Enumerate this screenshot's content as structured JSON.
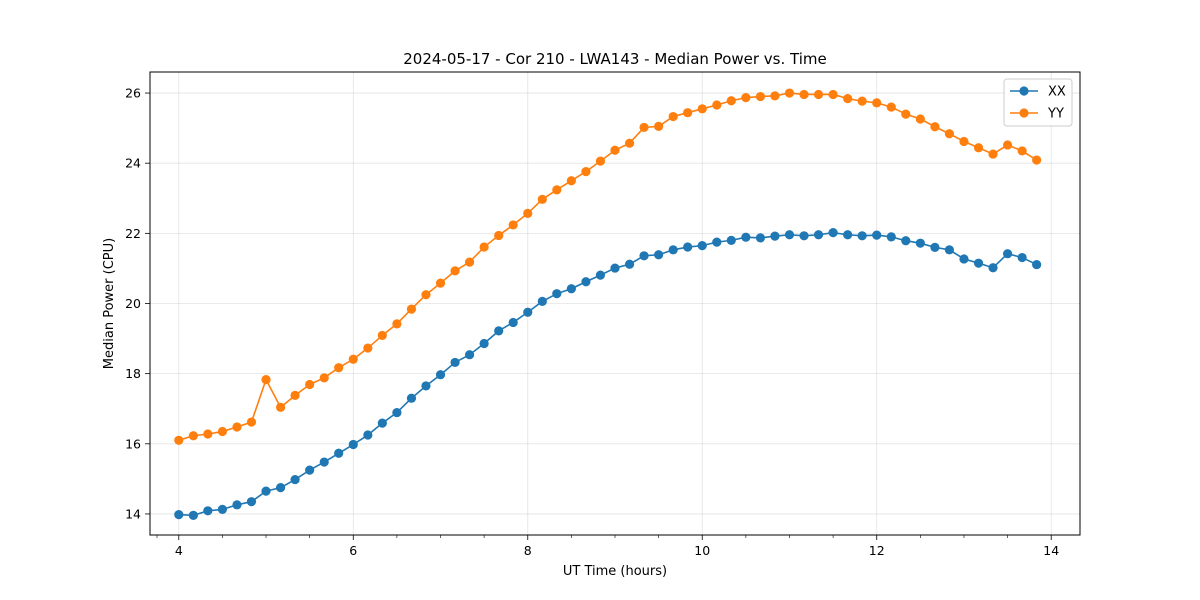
{
  "chart_data": {
    "type": "line",
    "title": "2024-05-17 - Cor 210 - LWA143 - Median Power vs. Time",
    "xlabel": "UT Time (hours)",
    "ylabel": "Median Power (CPU)",
    "xlim": [
      3.67,
      14.33
    ],
    "ylim": [
      13.4,
      26.6
    ],
    "xticks": [
      4,
      6,
      8,
      10,
      12,
      14
    ],
    "yticks": [
      14,
      16,
      18,
      20,
      22,
      24,
      26
    ],
    "grid": true,
    "legend_position": "top-right",
    "colors": {
      "XX": "#1f77b4",
      "YY": "#ff7f0e"
    },
    "x": [
      4.0,
      4.167,
      4.333,
      4.5,
      4.667,
      4.833,
      5.0,
      5.167,
      5.333,
      5.5,
      5.667,
      5.833,
      6.0,
      6.167,
      6.333,
      6.5,
      6.667,
      6.833,
      7.0,
      7.167,
      7.333,
      7.5,
      7.667,
      7.833,
      8.0,
      8.167,
      8.333,
      8.5,
      8.667,
      8.833,
      9.0,
      9.167,
      9.333,
      9.5,
      9.667,
      9.833,
      10.0,
      10.167,
      10.333,
      10.5,
      10.667,
      10.833,
      11.0,
      11.167,
      11.333,
      11.5,
      11.667,
      11.833,
      12.0,
      12.167,
      12.333,
      12.5,
      12.667,
      12.833,
      13.0,
      13.167,
      13.333,
      13.5,
      13.667,
      13.833
    ],
    "series": [
      {
        "name": "XX",
        "values": [
          13.98,
          13.96,
          14.09,
          14.13,
          14.26,
          14.35,
          14.65,
          14.75,
          14.98,
          15.25,
          15.48,
          15.73,
          15.98,
          16.25,
          16.59,
          16.89,
          17.3,
          17.65,
          17.97,
          18.32,
          18.54,
          18.86,
          19.22,
          19.46,
          19.75,
          20.06,
          20.28,
          20.42,
          20.62,
          20.81,
          21.01,
          21.12,
          21.36,
          21.39,
          21.53,
          21.61,
          21.65,
          21.75,
          21.8,
          21.89,
          21.87,
          21.92,
          21.96,
          21.93,
          21.96,
          22.02,
          21.96,
          21.93,
          21.95,
          21.9,
          21.79,
          21.72,
          21.6,
          21.53,
          21.27,
          21.15,
          21.02,
          21.42,
          21.31,
          21.11
        ]
      },
      {
        "name": "YY",
        "values": [
          16.1,
          16.23,
          16.28,
          16.35,
          16.48,
          16.62,
          17.83,
          17.04,
          17.38,
          17.69,
          17.88,
          18.17,
          18.41,
          18.73,
          19.09,
          19.42,
          19.84,
          20.25,
          20.58,
          20.93,
          21.18,
          21.61,
          21.94,
          22.24,
          22.57,
          22.97,
          23.24,
          23.5,
          23.76,
          24.06,
          24.37,
          24.57,
          25.02,
          25.05,
          25.33,
          25.44,
          25.55,
          25.66,
          25.78,
          25.87,
          25.9,
          25.92,
          26.0,
          25.96,
          25.96,
          25.96,
          25.84,
          25.77,
          25.72,
          25.6,
          25.4,
          25.26,
          25.04,
          24.84,
          24.62,
          24.44,
          24.26,
          24.52,
          24.35,
          24.09
        ]
      }
    ]
  }
}
